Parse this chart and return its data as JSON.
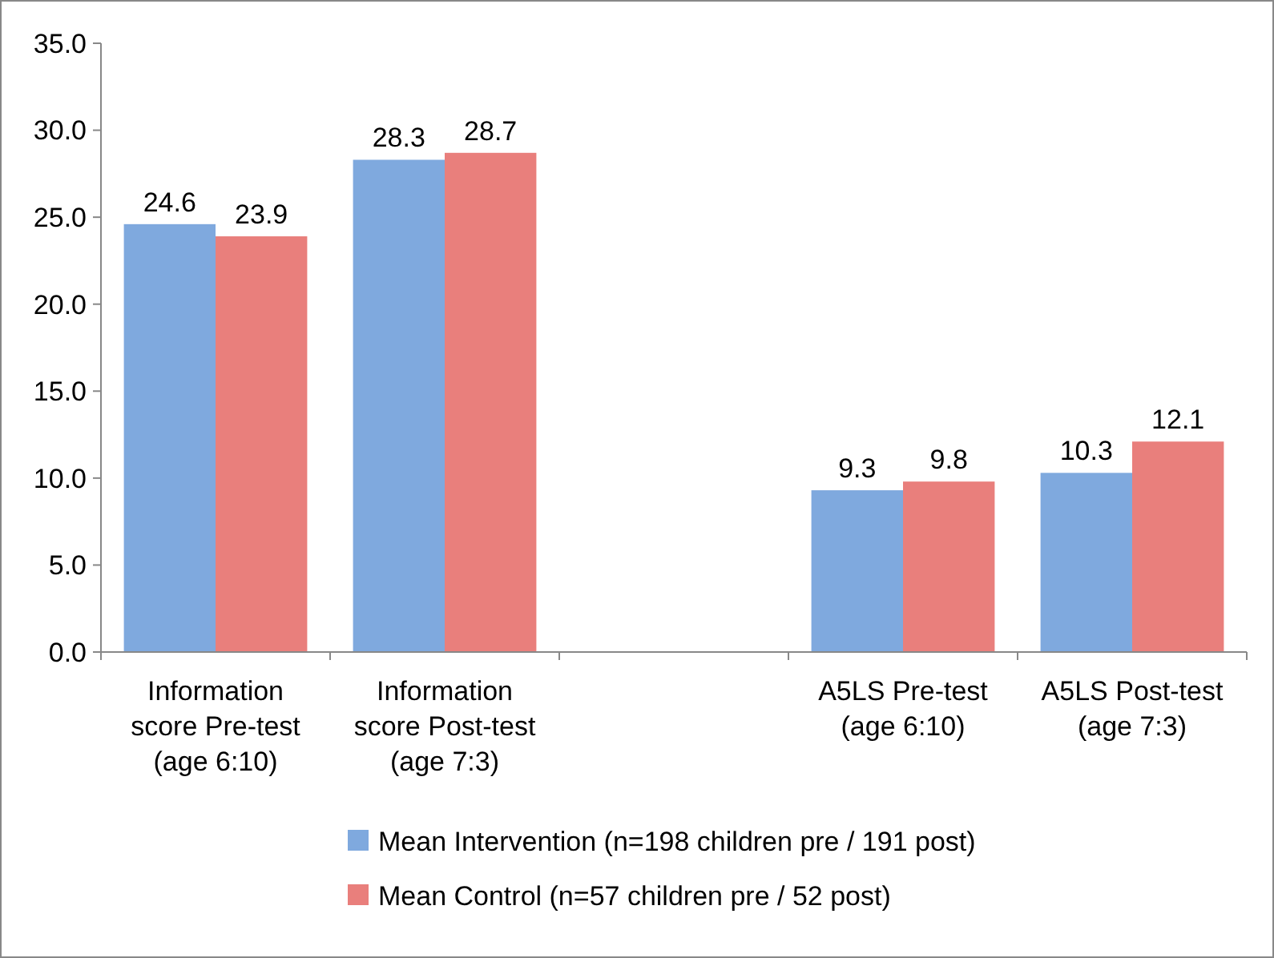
{
  "chart_data": {
    "type": "bar",
    "categories": [
      "Information score Pre-test (age 6:10)",
      "Information score Post-test (age 7:3)",
      null,
      "A5LS Pre-test (age 6:10)",
      "A5LS Post-test (age 7:3)"
    ],
    "series": [
      {
        "name": "Mean Intervention (n=198 children pre / 191 post)",
        "color": "#7fa9de",
        "values": [
          24.6,
          28.3,
          null,
          9.3,
          10.3
        ]
      },
      {
        "name": "Mean Control (n=57 children pre / 52 post)",
        "color": "#e97f7c",
        "values": [
          23.9,
          28.7,
          null,
          9.8,
          12.1
        ]
      }
    ],
    "ylim": [
      0,
      35
    ],
    "yticks": [
      {
        "value": 0,
        "label": "0.0"
      },
      {
        "value": 5,
        "label": "5.0"
      },
      {
        "value": 10,
        "label": "10.0"
      },
      {
        "value": 15,
        "label": "15.0"
      },
      {
        "value": 20,
        "label": "20.0"
      },
      {
        "value": 25,
        "label": "25.0"
      },
      {
        "value": 30,
        "label": "30.0"
      },
      {
        "value": 35,
        "label": "35.0"
      }
    ],
    "data_labels": true,
    "grid": false,
    "legend": "bottom"
  }
}
